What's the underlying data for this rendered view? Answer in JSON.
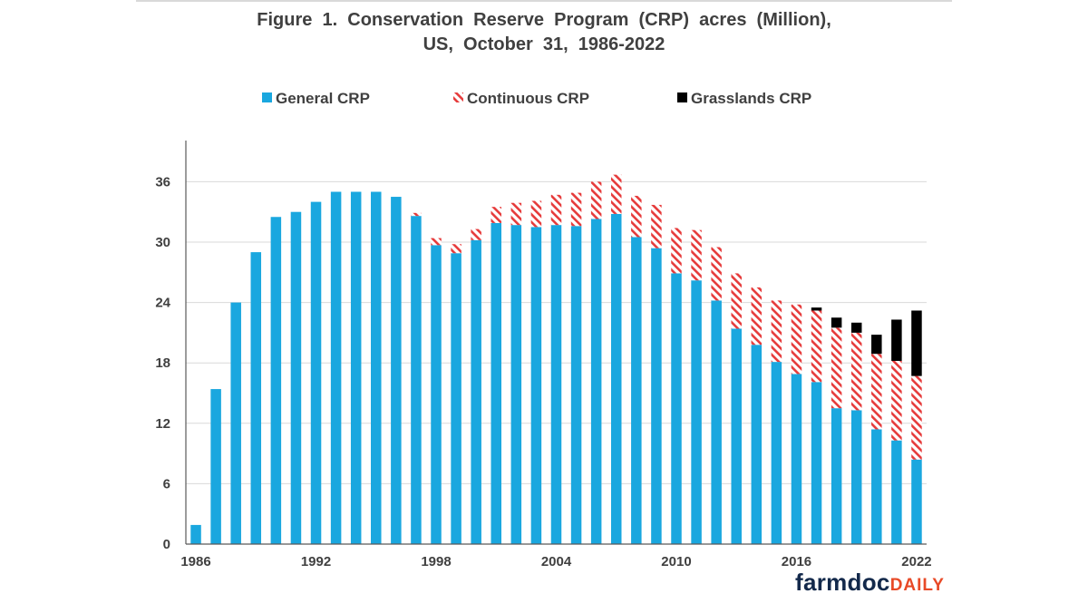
{
  "chart_data": {
    "type": "bar",
    "stacked": true,
    "title_lines": [
      "Figure  1.  Conservation  Reserve  Program  (CRP)  acres  (Million),",
      "US,  October  31,  1986-2022"
    ],
    "xlabel": "",
    "ylabel": "",
    "ylim": [
      0,
      40
    ],
    "yticks": [
      0,
      6,
      12,
      18,
      24,
      30,
      36
    ],
    "x": [
      1986,
      1987,
      1988,
      1989,
      1990,
      1991,
      1992,
      1993,
      1994,
      1995,
      1996,
      1997,
      1998,
      1999,
      2000,
      2001,
      2002,
      2003,
      2004,
      2005,
      2006,
      2007,
      2008,
      2009,
      2010,
      2011,
      2012,
      2013,
      2014,
      2015,
      2016,
      2017,
      2018,
      2019,
      2020,
      2021,
      2022
    ],
    "xticks": [
      1986,
      1992,
      1998,
      2004,
      2010,
      2016,
      2022
    ],
    "legend_position": "top",
    "grid": true,
    "series": [
      {
        "name": "General CRP",
        "color": "#1aa7df",
        "pattern": "solid",
        "values": [
          1.9,
          15.4,
          24.0,
          29.0,
          32.5,
          33.0,
          34.0,
          35.0,
          35.0,
          35.0,
          34.5,
          32.6,
          29.7,
          28.9,
          30.2,
          31.9,
          31.7,
          31.5,
          31.7,
          31.6,
          32.3,
          32.8,
          30.5,
          29.4,
          26.9,
          26.2,
          24.2,
          21.4,
          19.8,
          18.1,
          16.9,
          16.1,
          13.5,
          13.3,
          11.4,
          10.3,
          8.4
        ]
      },
      {
        "name": "Continuous CRP",
        "color": "#e63b3b",
        "pattern": "hatch",
        "values": [
          0,
          0,
          0,
          0,
          0,
          0,
          0,
          0,
          0,
          0,
          0,
          0.3,
          0.7,
          0.9,
          1.1,
          1.6,
          2.2,
          2.6,
          3.0,
          3.3,
          3.7,
          3.9,
          4.1,
          4.3,
          4.5,
          5.0,
          5.3,
          5.5,
          5.7,
          6.1,
          6.9,
          7.1,
          8.0,
          7.7,
          7.5,
          7.9,
          8.3
        ]
      },
      {
        "name": "Grasslands CRP",
        "color": "#000000",
        "pattern": "solid",
        "values": [
          0,
          0,
          0,
          0,
          0,
          0,
          0,
          0,
          0,
          0,
          0,
          0,
          0,
          0,
          0,
          0,
          0,
          0,
          0,
          0,
          0,
          0,
          0,
          0,
          0,
          0,
          0,
          0,
          0,
          0,
          0,
          0.3,
          1.0,
          1.0,
          1.9,
          4.1,
          6.5
        ]
      }
    ]
  },
  "logo": {
    "part1": "farmdoc",
    "part2": "DAILY"
  }
}
